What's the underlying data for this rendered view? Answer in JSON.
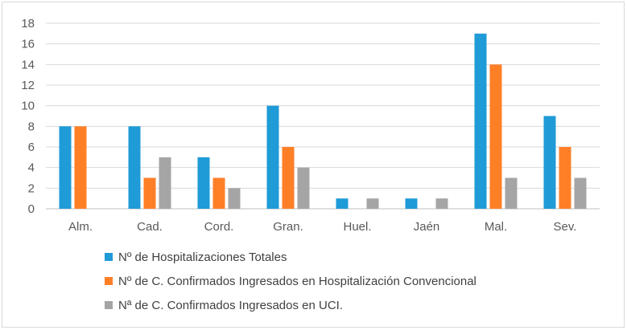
{
  "chart_data": {
    "type": "bar",
    "categories": [
      "Alm.",
      "Cad.",
      "Cord.",
      "Gran.",
      "Huel.",
      "Jaén",
      "Mal.",
      "Sev."
    ],
    "series": [
      {
        "name": "Nº de Hospitalizaciones Totales",
        "color": "#1f9bd7",
        "values": [
          8,
          8,
          5,
          10,
          1,
          1,
          17,
          9
        ]
      },
      {
        "name": "Nº de C. Confirmados Ingresados en Hospitalización Convencional",
        "color": "#ff7f27",
        "values": [
          8,
          3,
          3,
          6,
          0,
          0,
          14,
          6
        ]
      },
      {
        "name": "Nª de C. Confirmados Ingresados en UCI.",
        "color": "#a5a5a5",
        "values": [
          0,
          5,
          2,
          4,
          1,
          1,
          3,
          3
        ]
      }
    ],
    "ylim": [
      0,
      18
    ],
    "yticks": [
      0,
      2,
      4,
      6,
      8,
      10,
      12,
      14,
      16,
      18
    ],
    "grid": true,
    "legend_position": "bottom-left"
  }
}
